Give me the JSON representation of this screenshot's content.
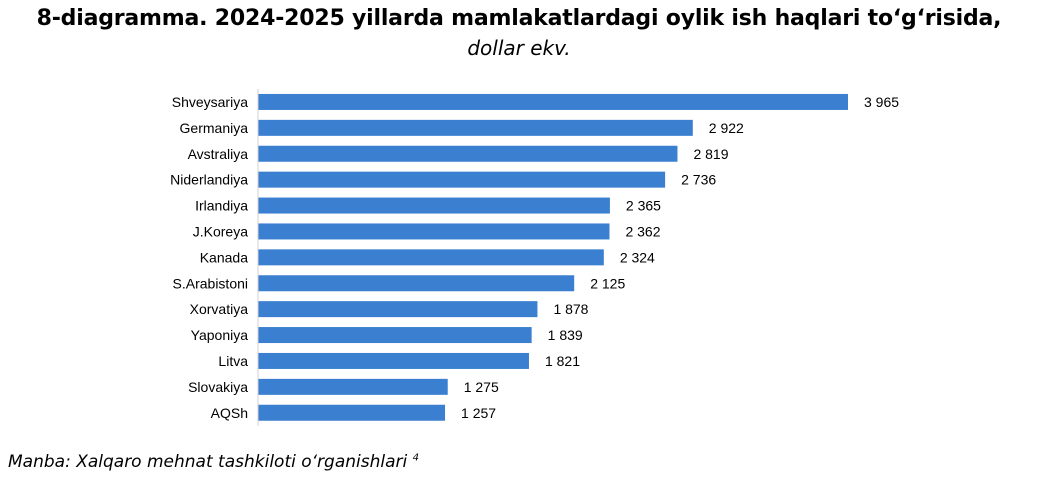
{
  "header": {
    "title": "8-diagramma. 2024-2025 yillarda mamlakatlardagi oylik ish haqlari to‘g‘risida,",
    "subtitle": "dollar ekv."
  },
  "footer": {
    "source": "Manba: Xalqaro mehnat tashkiloti o‘rganishlari",
    "footnote": "4"
  },
  "chart_data": {
    "type": "bar",
    "orientation": "horizontal",
    "title": "8-diagramma. 2024-2025 yillarda mamlakatlardagi oylik ish haqlari to‘g‘risida, dollar ekv.",
    "xlabel": "",
    "ylabel": "",
    "grid": false,
    "bar_color": "#3b7fd1",
    "xlim": [
      0,
      4000
    ],
    "categories": [
      "Shveysariya",
      "Germaniya",
      "Avstraliya",
      "Niderlandiya",
      "Irlandiya",
      "J.Koreya",
      "Kanada",
      "S.Arabistoni",
      "Xorvatiya",
      "Yaponiya",
      "Litva",
      "Slovakiya",
      "AQSh"
    ],
    "values": [
      3965,
      2922,
      2819,
      2736,
      2365,
      2362,
      2324,
      2125,
      1878,
      1839,
      1821,
      1275,
      1257
    ],
    "value_labels": [
      "3 965",
      "2 922",
      "2 819",
      "2 736",
      "2 365",
      "2 362",
      "2 324",
      "2 125",
      "1 878",
      "1 839",
      "1 821",
      "1 275",
      "1 257"
    ]
  }
}
